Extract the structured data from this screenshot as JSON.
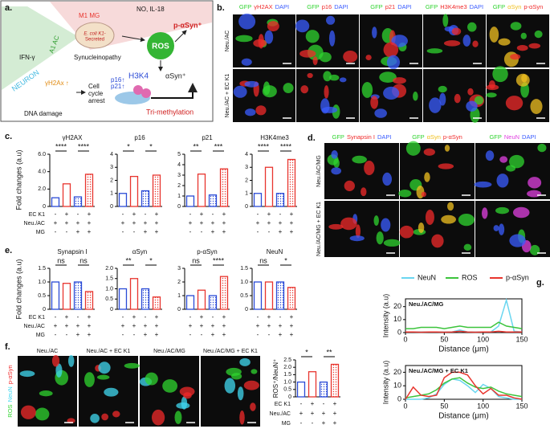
{
  "panels": {
    "a": {
      "label": "a.",
      "texts": {
        "m1_mg": "M1 MG",
        "no_il18": "NO, IL-18",
        "ifn": "IFN-γ",
        "a1_ac": "A1 AC",
        "ecoli_1": "E. coli K1-",
        "ecoli_2": "Secreted",
        "synucleinopathy": "Synucleinopathy",
        "ros": "ROS",
        "p_asyn": "p-αSyn⁺",
        "asyn": "αSyn⁺",
        "h3k4": "H3K4",
        "neuron": "NEURON",
        "gh2ax": "γH2Ax ↑",
        "cell_cycle": [
          "Cell",
          "cycle",
          "arrest"
        ],
        "p16": "p16↑",
        "p21": "p21↑",
        "dna_damage": "DNA damage",
        "trimethylation": "Tri-methylation"
      }
    },
    "b": {
      "label": "b.",
      "columns": [
        [
          {
            "text": "GFP",
            "color": "#2fd42f"
          },
          {
            "text": "γH2AX",
            "color": "#f02a2a"
          },
          {
            "text": "DAPI",
            "color": "#3a5cff"
          }
        ],
        [
          {
            "text": "GFP",
            "color": "#2fd42f"
          },
          {
            "text": "p16",
            "color": "#f02a2a"
          },
          {
            "text": "DAPI",
            "color": "#3a5cff"
          }
        ],
        [
          {
            "text": "GFP",
            "color": "#2fd42f"
          },
          {
            "text": "p21",
            "color": "#f02a2a"
          },
          {
            "text": "DAPI",
            "color": "#3a5cff"
          }
        ],
        [
          {
            "text": "GFP",
            "color": "#2fd42f"
          },
          {
            "text": "H3K4me3",
            "color": "#f02a2a"
          },
          {
            "text": "DAPI",
            "color": "#3a5cff"
          }
        ],
        [
          {
            "text": "GFP",
            "color": "#2fd42f"
          },
          {
            "text": "αSyn",
            "color": "#f0c020"
          },
          {
            "text": "p-αSyn",
            "color": "#f02a2a"
          }
        ]
      ],
      "rows": [
        "Neu./AC",
        "Neu./AC + EC K1"
      ]
    },
    "c": {
      "label": "c.",
      "ylabel": "Fold changes (a.u)",
      "conditions": [
        {
          "label": "EC K1",
          "signs": [
            "-",
            "+",
            "-",
            "+"
          ]
        },
        {
          "label": "Neu./AC",
          "signs": [
            "+",
            "+",
            "+",
            "+"
          ]
        },
        {
          "label": "MG",
          "signs": [
            "-",
            "-",
            "+",
            "+"
          ]
        }
      ]
    },
    "d": {
      "label": "d.",
      "columns": [
        [
          {
            "text": "GFP",
            "color": "#2fd42f"
          },
          {
            "text": "Synapsin I",
            "color": "#f02a2a"
          },
          {
            "text": "DAPI",
            "color": "#3a5cff"
          }
        ],
        [
          {
            "text": "GFP",
            "color": "#2fd42f"
          },
          {
            "text": "αSyn",
            "color": "#f0c020"
          },
          {
            "text": "p-αSyn",
            "color": "#f02a2a"
          }
        ],
        [
          {
            "text": "GFP",
            "color": "#2fd42f"
          },
          {
            "text": "NeuN",
            "color": "#e040e0"
          },
          {
            "text": "DAPI",
            "color": "#3a5cff"
          }
        ]
      ],
      "rows": [
        "Neu./AC/MG",
        "Neu./AC/MG + EC K1"
      ]
    },
    "e": {
      "label": "e.",
      "ylabel": "Fold changes (a.u)",
      "conditions": [
        {
          "label": "EC K1",
          "signs": [
            "-",
            "+",
            "-",
            "+"
          ]
        },
        {
          "label": "Neu./AC",
          "signs": [
            "+",
            "+",
            "+",
            "+"
          ]
        },
        {
          "label": "MG",
          "signs": [
            "-",
            "-",
            "+",
            "+"
          ]
        }
      ]
    },
    "f": {
      "label": "f.",
      "side_label": [
        {
          "text": "ROS",
          "color": "#2fd42f"
        },
        {
          "text": "NeuN",
          "color": "#40d8f0"
        },
        {
          "text": "p-αSyn",
          "color": "#f02a2a"
        }
      ],
      "images": [
        "Neu./AC",
        "Neu./AC + EC K1",
        "Neu./AC/MG",
        "Neu./AC/MG + EC K1"
      ],
      "conditions": [
        {
          "label": "EC K1",
          "signs": [
            "-",
            "+",
            "-",
            "+"
          ]
        },
        {
          "label": "Neu./AC",
          "signs": [
            "+",
            "+",
            "+",
            "+"
          ]
        },
        {
          "label": "MG",
          "signs": [
            "-",
            "-",
            "+",
            "+"
          ]
        }
      ]
    },
    "g": {
      "label": "g."
    }
  },
  "chart_data": [
    {
      "type": "bar",
      "title": "γH2AX",
      "values": [
        1.0,
        2.6,
        1.1,
        3.7
      ],
      "colors": [
        "#2b4bd6",
        "#e8352e",
        "#2b4bd6",
        "#e8352e"
      ],
      "ylim": [
        0,
        6
      ],
      "yticks": [
        0,
        {
          "value": 2,
          "label": "2.0"
        },
        {
          "value": 4,
          "label": "4.0"
        },
        {
          "value": 6,
          "label": "6.0"
        }
      ],
      "significance": [
        "****",
        "****"
      ]
    },
    {
      "type": "bar",
      "title": "p16",
      "values": [
        1.0,
        2.3,
        1.2,
        2.4
      ],
      "colors": [
        "#2b4bd6",
        "#e8352e",
        "#2b4bd6",
        "#e8352e"
      ],
      "ylim": [
        0,
        4
      ],
      "yticks": [
        0,
        1,
        2,
        3,
        4
      ],
      "significance": [
        "*",
        "*"
      ]
    },
    {
      "type": "bar",
      "title": "p21",
      "values": [
        1.0,
        3.1,
        1.1,
        3.6
      ],
      "colors": [
        "#2b4bd6",
        "#e8352e",
        "#2b4bd6",
        "#e8352e"
      ],
      "ylim": [
        0,
        5
      ],
      "yticks": [
        0,
        1,
        2,
        3,
        4,
        5
      ],
      "significance": [
        "**",
        "***"
      ]
    },
    {
      "type": "bar",
      "title": "H3K4me3",
      "values": [
        1.0,
        3.0,
        1.0,
        3.6
      ],
      "colors": [
        "#2b4bd6",
        "#e8352e",
        "#2b4bd6",
        "#e8352e"
      ],
      "ylim": [
        0,
        4
      ],
      "yticks": [
        0,
        1,
        2,
        3,
        4
      ],
      "significance": [
        "****",
        "****"
      ]
    },
    {
      "type": "bar",
      "title": "Synapsin I",
      "values": [
        1.0,
        0.95,
        1.0,
        0.65
      ],
      "colors": [
        "#2b4bd6",
        "#e8352e",
        "#2b4bd6",
        "#e8352e"
      ],
      "ylim": [
        0,
        1.5
      ],
      "yticks": [
        0,
        0.5,
        {
          "value": 1,
          "label": "1.0"
        },
        1.5
      ],
      "significance": [
        "ns",
        "ns"
      ]
    },
    {
      "type": "bar",
      "title": "αSyn",
      "values": [
        1.0,
        1.5,
        1.0,
        0.6
      ],
      "colors": [
        "#2b4bd6",
        "#e8352e",
        "#2b4bd6",
        "#e8352e"
      ],
      "ylim": [
        0,
        2
      ],
      "yticks": [
        0,
        0.5,
        {
          "value": 1,
          "label": "1.0"
        },
        1.5,
        {
          "value": 2,
          "label": "2.0"
        }
      ],
      "significance": [
        "**",
        "*"
      ]
    },
    {
      "type": "bar",
      "title": "p-αSyn",
      "values": [
        1.0,
        1.4,
        1.0,
        2.4
      ],
      "colors": [
        "#2b4bd6",
        "#e8352e",
        "#2b4bd6",
        "#e8352e"
      ],
      "ylim": [
        0,
        3
      ],
      "yticks": [
        0,
        1,
        2,
        3
      ],
      "significance": [
        "ns",
        "****"
      ]
    },
    {
      "type": "bar",
      "title": "NeuN",
      "values": [
        1.0,
        1.0,
        1.0,
        0.8
      ],
      "colors": [
        "#2b4bd6",
        "#e8352e",
        "#2b4bd6",
        "#e8352e"
      ],
      "ylim": [
        0,
        1.5
      ],
      "yticks": [
        0,
        0.5,
        {
          "value": 1,
          "label": "1.0"
        },
        1.5
      ],
      "significance": [
        "ns",
        "*"
      ]
    },
    {
      "type": "bar",
      "ylabel": "ROS⁺/NeuN⁺",
      "values": [
        1.0,
        1.7,
        1.0,
        2.2
      ],
      "colors": [
        "#2b4bd6",
        "#e8352e",
        "#2b4bd6",
        "#e8352e"
      ],
      "ylim": [
        0,
        2.5
      ],
      "yticks": [
        0,
        0.5,
        {
          "value": 1,
          "label": "1.0"
        },
        1.5,
        {
          "value": 2,
          "label": "2.0"
        },
        2.5
      ],
      "significance": [
        "*",
        "**"
      ]
    },
    {
      "type": "line",
      "title": "Neu./AC/MG",
      "xlabel": "Distance (μm)",
      "ylabel": "Intensity (a.u)",
      "x": [
        0,
        10,
        20,
        30,
        40,
        50,
        60,
        70,
        80,
        90,
        100,
        110,
        120,
        130,
        140,
        150
      ],
      "xlim": [
        0,
        150
      ],
      "xticks": [
        0,
        50,
        100,
        150
      ],
      "ylim": [
        0,
        26
      ],
      "yticks": [
        0,
        10,
        20
      ],
      "series": [
        {
          "name": "NeuN",
          "color": "#6ad6f0",
          "values": [
            0.5,
            0.5,
            0.5,
            0.5,
            0.5,
            0.5,
            0.5,
            2,
            0.5,
            0.5,
            0.5,
            0.5,
            5,
            25,
            1,
            0.5
          ]
        },
        {
          "name": "ROS",
          "color": "#3cc43c",
          "values": [
            3,
            3,
            4,
            4,
            4,
            3,
            4,
            5,
            4,
            4,
            4,
            4,
            8,
            5,
            4,
            3
          ]
        },
        {
          "name": "p-αSyn",
          "color": "#e8352e",
          "values": [
            0.5,
            0.5,
            0.3,
            0.5,
            0.5,
            0.3,
            0.5,
            1,
            0.5,
            0.3,
            0.5,
            0.5,
            1,
            0.5,
            0.5,
            0.5
          ]
        }
      ]
    },
    {
      "type": "line",
      "title": "Neu./AC/MG + EC K1",
      "xlabel": "Distance (μm)",
      "ylabel": "Intensity (a.u)",
      "x": [
        0,
        10,
        20,
        30,
        40,
        50,
        60,
        70,
        80,
        90,
        100,
        110,
        120,
        130,
        140,
        150
      ],
      "xlim": [
        0,
        150
      ],
      "xticks": [
        0,
        50,
        100,
        150
      ],
      "ylim": [
        0,
        25
      ],
      "yticks": [
        0,
        10,
        20
      ],
      "series": [
        {
          "color": "#6ad6f0",
          "values": [
            0,
            0,
            0,
            1,
            4,
            11,
            15,
            14,
            10,
            5,
            11,
            8,
            2,
            1,
            0,
            0
          ]
        },
        {
          "color": "#3cc43c",
          "values": [
            1,
            2,
            3,
            4,
            7,
            12,
            15,
            16,
            12,
            9,
            8,
            9,
            6,
            4,
            3,
            2
          ]
        },
        {
          "color": "#e8352e",
          "values": [
            0,
            9,
            3,
            2,
            3,
            16,
            20,
            20,
            18,
            10,
            4,
            8,
            3,
            3,
            1,
            0
          ]
        }
      ]
    }
  ]
}
